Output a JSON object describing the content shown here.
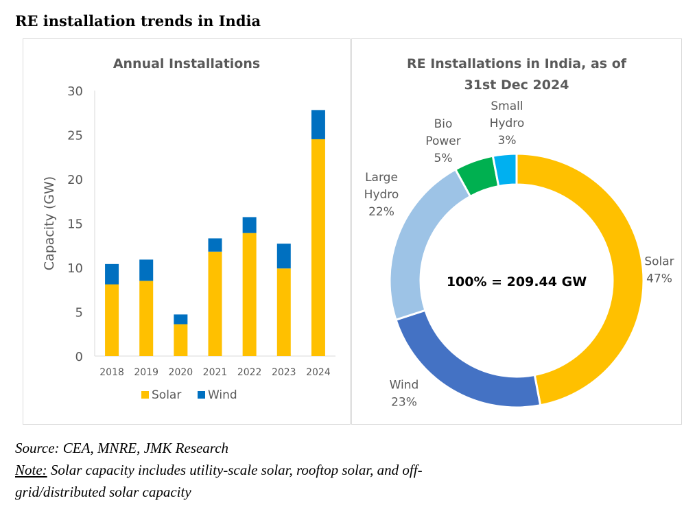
{
  "title": "RE installation trends in India",
  "chart_data": [
    {
      "type": "bar",
      "stacked": true,
      "title": "Annual Installations",
      "xlabel": "",
      "ylabel": "Capacity (GW)",
      "ylim": [
        0,
        30
      ],
      "yticks": [
        0,
        5,
        10,
        15,
        20,
        25,
        30
      ],
      "categories": [
        "2018",
        "2019",
        "2020",
        "2021",
        "2022",
        "2023",
        "2024"
      ],
      "series": [
        {
          "name": "Solar",
          "color": "#FFC000",
          "values": [
            8.1,
            8.5,
            3.6,
            11.8,
            13.9,
            9.9,
            24.5
          ]
        },
        {
          "name": "Wind",
          "color": "#0070C0",
          "values": [
            2.3,
            2.4,
            1.1,
            1.5,
            1.8,
            2.8,
            3.3
          ]
        }
      ],
      "legend": "bottom",
      "grid": false
    },
    {
      "type": "pie",
      "donut": true,
      "title_lines": [
        "RE Installations in India, as of",
        "31st Dec 2024"
      ],
      "center_label": "100% = 209.44 GW",
      "slices": [
        {
          "label_lines": [
            "Solar",
            "47%"
          ],
          "value": 47,
          "color": "#FFC000"
        },
        {
          "label_lines": [
            "Wind",
            "23%"
          ],
          "value": 23,
          "color": "#4472C4"
        },
        {
          "label_lines": [
            "Large",
            "Hydro",
            "22%"
          ],
          "value": 22,
          "color": "#9DC3E6"
        },
        {
          "label_lines": [
            "Bio",
            "Power",
            "5%"
          ],
          "value": 5,
          "color": "#00B050"
        },
        {
          "label_lines": [
            "Small",
            "Hydro",
            "3%"
          ],
          "value": 3,
          "color": "#00B0F0"
        }
      ]
    }
  ],
  "footer": {
    "source": "Source: CEA, MNRE, JMK Research",
    "note_label": "Note:",
    "note_line1": " Solar capacity includes utility-scale solar, rooftop solar, and off-",
    "note_line2": "grid/distributed solar capacity"
  }
}
